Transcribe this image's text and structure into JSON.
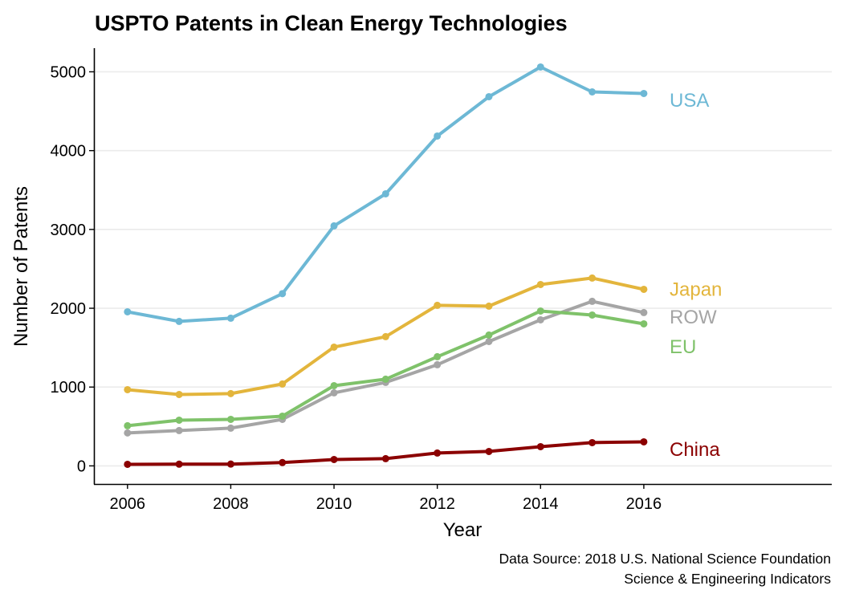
{
  "chart_data": {
    "type": "line",
    "title": "USPTO Patents in Clean Energy Technologies",
    "xlabel": "Year",
    "ylabel": "Number of Patents",
    "caption": [
      "Data Source: 2018 U.S. National Science Foundation",
      "Science & Engineering Indicators"
    ],
    "x": [
      2006,
      2007,
      2008,
      2009,
      2010,
      2011,
      2012,
      2013,
      2014,
      2015,
      2016
    ],
    "xlim": [
      2005.35,
      2019.64
    ],
    "ylim": [
      -230,
      5300
    ],
    "xticks": [
      2006,
      2008,
      2010,
      2012,
      2014,
      2016
    ],
    "yticks": [
      0,
      1000,
      2000,
      3000,
      4000,
      5000
    ],
    "grid": "horizontal-major",
    "legend": "direct-labels-right",
    "series": [
      {
        "name": "USA",
        "color": "#6db8d5",
        "values": [
          1955,
          1833,
          1874,
          2185,
          3045,
          3452,
          4185,
          4684,
          5061,
          4745,
          4725
        ]
      },
      {
        "name": "Japan",
        "color": "#e3b53c",
        "values": [
          967,
          906,
          917,
          1039,
          1507,
          1640,
          2037,
          2027,
          2301,
          2383,
          2240
        ]
      },
      {
        "name": "ROW",
        "color": "#a5a5a5",
        "values": [
          418,
          448,
          479,
          590,
          927,
          1059,
          1283,
          1578,
          1853,
          2088,
          1945
        ]
      },
      {
        "name": "EU",
        "color": "#7fc26a",
        "values": [
          509,
          580,
          590,
          631,
          1018,
          1100,
          1385,
          1660,
          1965,
          1914,
          1802
        ]
      },
      {
        "name": "China",
        "color": "#8b0000",
        "values": [
          20,
          22,
          23,
          42,
          81,
          92,
          163,
          183,
          244,
          295,
          305
        ]
      }
    ],
    "labels": [
      {
        "series": "USA",
        "text": "USA",
        "y": 4650
      },
      {
        "series": "Japan",
        "text": "Japan",
        "y": 2250
      },
      {
        "series": "ROW",
        "text": "ROW",
        "y": 1900
      },
      {
        "series": "EU",
        "text": "EU",
        "y": 1520
      },
      {
        "series": "China",
        "text": "China",
        "y": 220
      }
    ]
  }
}
